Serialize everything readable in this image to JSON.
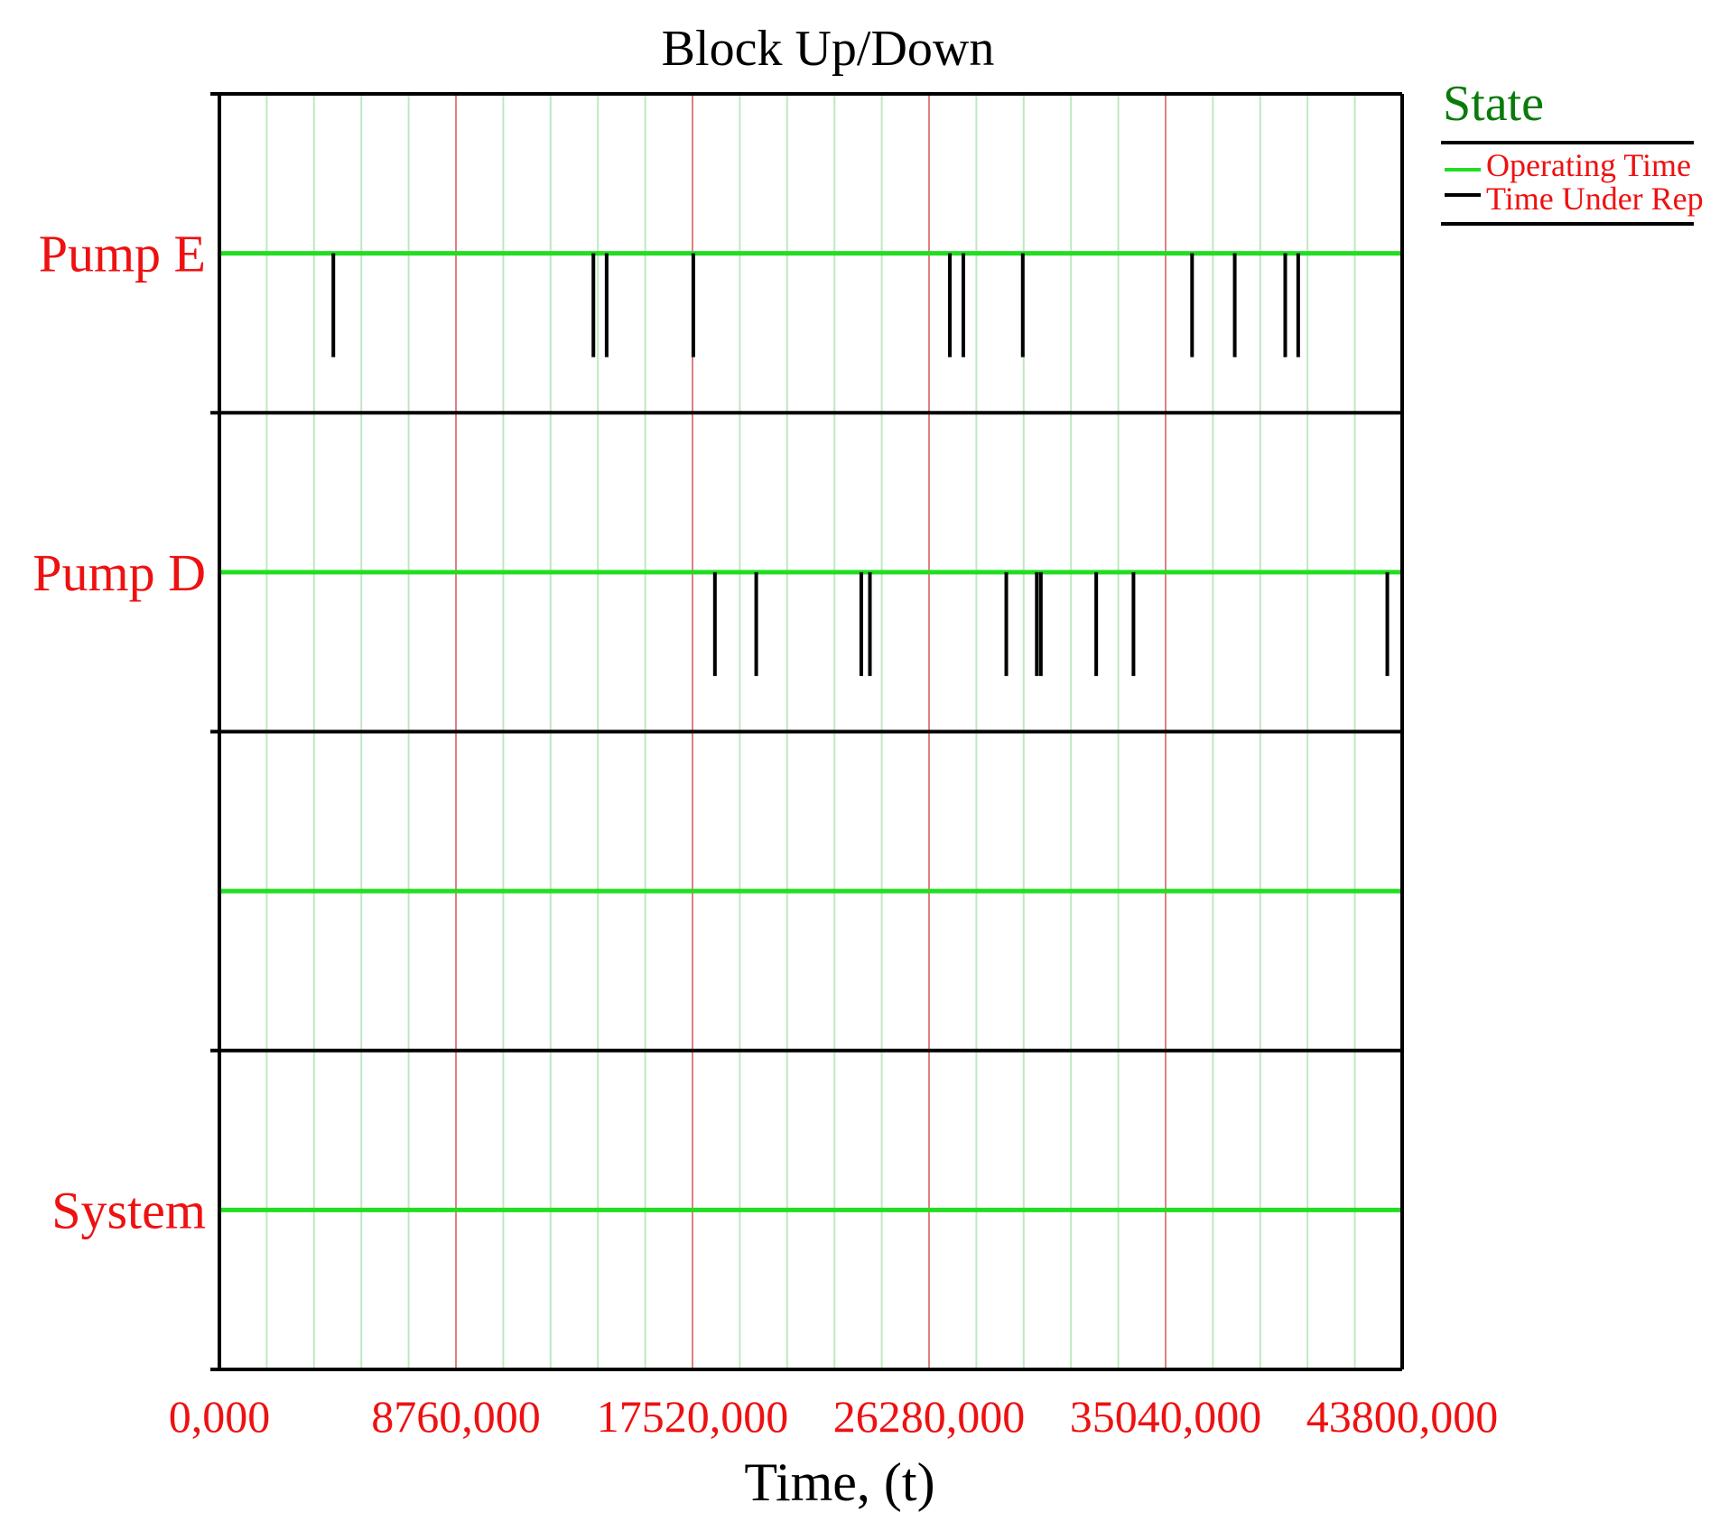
{
  "chart_data": {
    "type": "block-up-down",
    "title": "Block Up/Down",
    "xlabel": "Time, (t)",
    "xlim": [
      0,
      43800
    ],
    "x_ticks": [
      0,
      8760,
      17520,
      26280,
      35040,
      43800
    ],
    "x_tick_labels": [
      "0,000",
      "8760,000",
      "17520,000",
      "26280,000",
      "35040,000",
      "43800,000"
    ],
    "minor_grid_step": 1752,
    "grid": true,
    "legend": {
      "title": "State",
      "placement": "top-right",
      "entries": [
        {
          "label": "Operating Time",
          "color": "#22dd22"
        },
        {
          "label": "Time Under Rep",
          "color": "#000000"
        }
      ]
    },
    "rows": [
      {
        "label": "Pump E",
        "failures": [
          4220,
          13850,
          14340,
          17550,
          27050,
          27550,
          29750,
          36020,
          37600,
          39470,
          39950
        ]
      },
      {
        "label": "Pump D",
        "failures": [
          18350,
          19880,
          23770,
          24090,
          29140,
          30270,
          30420,
          32470,
          33850,
          43250
        ]
      },
      {
        "label": "",
        "failures": []
      },
      {
        "label": "System",
        "failures": []
      }
    ]
  },
  "colors": {
    "operating": "#22dd22",
    "repair": "#000000",
    "axis": "#000000",
    "minor_grid": "#bfe8bf",
    "major_grid": "#e08080",
    "row_label": "#ee1111",
    "tick_label": "#ee1111",
    "legend_title": "#0a7a0a",
    "legend_text": "#ee1111"
  }
}
